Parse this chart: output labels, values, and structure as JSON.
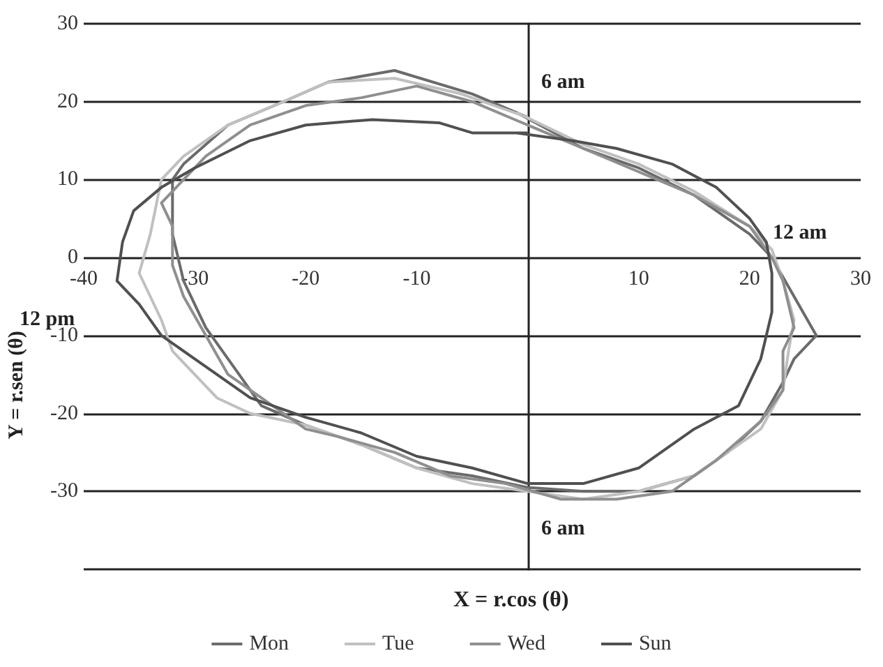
{
  "chart_data": {
    "type": "line",
    "xlabel": "X = r.cos (θ)",
    "ylabel": "Y = r.sen (θ)",
    "xlim": [
      -40,
      30
    ],
    "xticks": [
      -40,
      -30,
      -20,
      -10,
      10,
      20,
      30
    ],
    "ylim": [
      -40,
      30
    ],
    "yticks": [
      {
        "value": -40,
        "label": null
      },
      -30,
      -20,
      -10,
      0,
      10,
      20,
      30
    ],
    "grid": "y",
    "legend": "bottom",
    "marker": "none",
    "line_style": "solid",
    "annotations": [
      "6 am",
      "12 am",
      "12 pm",
      "6 am"
    ],
    "series": [
      {
        "name": "Mon",
        "color": "#6b6b6b",
        "x": [
          0,
          -5,
          -12,
          -18,
          -22,
          -27,
          -31,
          -32,
          -32,
          -31,
          -29,
          -27,
          -24,
          -20,
          -15,
          -10,
          -5,
          0,
          5,
          10,
          15,
          18,
          21,
          23,
          24,
          26,
          24,
          22,
          20,
          15,
          10,
          5,
          -1
        ],
        "values": [
          18,
          21,
          24,
          22.5,
          20,
          17,
          12,
          10,
          3,
          -3,
          -9,
          -13,
          -19,
          -21.5,
          -24,
          -27,
          -28,
          -29.5,
          -30,
          -30,
          -28,
          -25,
          -21,
          -16,
          -13,
          -10,
          -5,
          0,
          3,
          8,
          11.5,
          14,
          18.6
        ]
      },
      {
        "name": "Tue",
        "color": "#c0c0c0",
        "x": [
          0,
          -6,
          -12,
          -18,
          -22,
          -27,
          -31,
          -33,
          -34,
          -35,
          -33,
          -32,
          -28,
          -25,
          -20,
          -15,
          -10,
          -5,
          0,
          5,
          10,
          15,
          18,
          21,
          23,
          23.5,
          24,
          23,
          22,
          20,
          15,
          10,
          5,
          -1
        ],
        "values": [
          18,
          21,
          23,
          22.5,
          20,
          17,
          13,
          10,
          3,
          -2,
          -8,
          -12,
          -18,
          -20,
          -21.5,
          -24,
          -27,
          -29,
          -30,
          -31,
          -30,
          -28,
          -25,
          -22,
          -17,
          -12,
          -8,
          -3,
          1,
          4,
          8.5,
          12,
          14.5,
          18.6
        ]
      },
      {
        "name": "Wed",
        "color": "#8f8f8f",
        "x": [
          0,
          -5,
          -10,
          -15,
          -20,
          -25,
          -29,
          -31,
          -33,
          -32,
          -32,
          -31,
          -29,
          -27,
          -24,
          -20,
          -17,
          -12,
          -7,
          -2,
          3,
          8,
          13,
          17,
          21,
          23,
          23,
          24,
          23,
          22,
          20,
          15,
          10,
          5,
          -1
        ],
        "values": [
          17,
          20,
          22,
          20.5,
          19.5,
          17,
          13,
          10,
          7,
          4,
          -1,
          -5,
          -10,
          -15,
          -18,
          -22,
          -23,
          -25,
          -28,
          -29,
          -31,
          -31,
          -30,
          -26,
          -21,
          -17,
          -12,
          -9,
          -3,
          0,
          4,
          8,
          11,
          14,
          17.6
        ]
      },
      {
        "name": "Sun",
        "color": "#505050",
        "x": [
          0,
          -5,
          -8,
          -14,
          -20,
          -25,
          -30,
          -33,
          -35.5,
          -36.5,
          -37,
          -35,
          -33,
          -30,
          -25,
          -20,
          -15,
          -10,
          -5,
          0,
          5,
          10,
          15,
          19,
          21,
          22,
          22,
          21.5,
          20,
          17,
          13,
          8,
          4,
          -1
        ],
        "values": [
          16,
          16,
          17.3,
          17.7,
          17,
          15,
          11.5,
          9,
          6,
          2,
          -3,
          -6,
          -10,
          -13,
          -18,
          -20.5,
          -22.5,
          -25.5,
          -27,
          -29,
          -29,
          -27,
          -22,
          -19,
          -13,
          -7,
          -2,
          2,
          5,
          9,
          12,
          14,
          15,
          16
        ]
      }
    ]
  }
}
